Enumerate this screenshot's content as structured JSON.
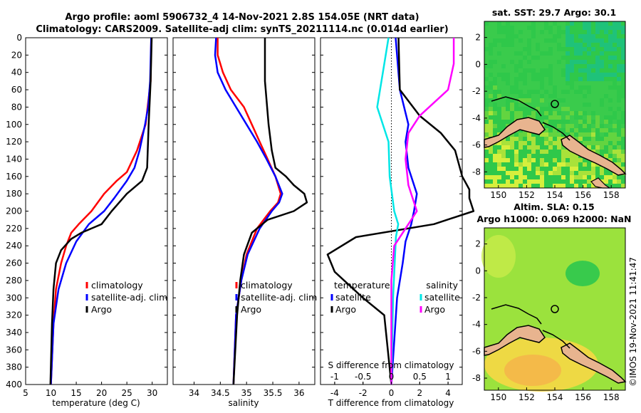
{
  "header": {
    "line1": "Argo profile: aoml 5906732_4 14-Nov-2021 2.8S 154.05E (NRT data)",
    "line2": "Climatology: CARS2009. Satellite-adj clim: synTS_20211114.nc (0.014d earlier)"
  },
  "depth_ticks": [
    "0",
    "20",
    "40",
    "60",
    "80",
    "100",
    "120",
    "140",
    "160",
    "180",
    "200",
    "220",
    "240",
    "260",
    "280",
    "300",
    "320",
    "340",
    "360",
    "380",
    "400"
  ],
  "colors": {
    "climatology": "#ff0000",
    "satellite": "#0000ff",
    "argo": "#000000",
    "sat_s": "#00e6e6",
    "argo_s": "#ff00ff"
  },
  "chart_data": [
    {
      "type": "line",
      "id": "temperature",
      "xlabel": "temperature (deg C)",
      "xlim": [
        5,
        33
      ],
      "ylim": [
        0,
        400
      ],
      "xticks": [
        "5",
        "10",
        "15",
        "20",
        "25",
        "30"
      ],
      "legend": [
        "climatology",
        "satellite-adj. clim",
        "Argo"
      ],
      "series": [
        {
          "name": "climatology",
          "depth": [
            0,
            50,
            100,
            130,
            155,
            165,
            180,
            200,
            215,
            225,
            240,
            260,
            290,
            330,
            400
          ],
          "values": [
            29.8,
            29.7,
            28.7,
            27.0,
            25.0,
            23.0,
            20.5,
            18.0,
            15.5,
            14.0,
            13.0,
            12.0,
            11.0,
            10.5,
            10.0
          ]
        },
        {
          "name": "satellite-adj. clim",
          "depth": [
            0,
            50,
            80,
            100,
            130,
            150,
            165,
            185,
            200,
            215,
            235,
            260,
            290,
            330,
            400
          ],
          "values": [
            29.8,
            29.6,
            29.2,
            28.6,
            27.5,
            26.5,
            25.0,
            22.5,
            20.5,
            17.5,
            15.0,
            13.0,
            11.5,
            10.5,
            10.0
          ]
        },
        {
          "name": "Argo",
          "depth": [
            0,
            50,
            100,
            150,
            165,
            180,
            200,
            215,
            225,
            232,
            245,
            260,
            290,
            330,
            400
          ],
          "values": [
            29.9,
            29.7,
            29.3,
            29.0,
            28.0,
            25.0,
            22.0,
            20.0,
            16.0,
            14.0,
            12.0,
            11.0,
            10.5,
            10.2,
            9.9
          ]
        }
      ]
    },
    {
      "type": "line",
      "id": "salinity",
      "xlabel": "salinity",
      "xlim": [
        33.6,
        36.3
      ],
      "ylim": [
        0,
        400
      ],
      "xticks": [
        "34",
        "34.5",
        "35",
        "35.5",
        "36"
      ],
      "legend": [
        "climatology",
        "satellite-adj. clim",
        "Argo"
      ],
      "series": [
        {
          "name": "climatology",
          "depth": [
            0,
            20,
            40,
            60,
            80,
            100,
            120,
            140,
            160,
            180,
            190,
            200,
            220,
            250,
            280,
            320,
            400
          ],
          "values": [
            34.45,
            34.45,
            34.55,
            34.7,
            34.95,
            35.1,
            35.25,
            35.4,
            35.55,
            35.65,
            35.6,
            35.45,
            35.2,
            35.0,
            34.9,
            34.8,
            34.75
          ]
        },
        {
          "name": "satellite-adj. clim",
          "depth": [
            0,
            20,
            40,
            60,
            80,
            100,
            120,
            140,
            160,
            180,
            190,
            200,
            220,
            250,
            280,
            320,
            400
          ],
          "values": [
            34.42,
            34.4,
            34.45,
            34.6,
            34.8,
            35.0,
            35.2,
            35.38,
            35.55,
            35.68,
            35.62,
            35.48,
            35.25,
            35.02,
            34.9,
            34.8,
            34.75
          ]
        },
        {
          "name": "Argo",
          "depth": [
            0,
            50,
            100,
            130,
            150,
            160,
            170,
            180,
            190,
            200,
            210,
            225,
            250,
            280,
            320,
            400
          ],
          "values": [
            35.35,
            35.35,
            35.42,
            35.48,
            35.55,
            35.75,
            35.9,
            36.1,
            36.15,
            35.9,
            35.4,
            35.1,
            34.95,
            34.88,
            34.82,
            34.75
          ]
        }
      ]
    },
    {
      "type": "line",
      "id": "difference",
      "xlabel": "T difference from climatology",
      "xlabel_top": "S difference from climatology",
      "xlim": [
        -5,
        5
      ],
      "ylim": [
        0,
        400
      ],
      "xticks": [
        "-4",
        "-2",
        "0",
        "2",
        "4"
      ],
      "xticks_top": [
        "-1",
        "-0.5",
        "0",
        "0.5",
        "1"
      ],
      "legend_temperature": {
        "title": "temperature",
        "items": [
          "satellite",
          "Argo"
        ]
      },
      "legend_salinity": {
        "title": "salinity",
        "items": [
          "satellite",
          "Argo"
        ]
      },
      "series": [
        {
          "name": "temperature satellite",
          "depth": [
            0,
            60,
            100,
            120,
            150,
            180,
            200,
            215,
            235,
            260,
            300,
            400
          ],
          "values": [
            0.3,
            0.6,
            1.2,
            1.0,
            1.2,
            1.8,
            1.6,
            1.4,
            1.0,
            0.8,
            0.4,
            0.0
          ]
        },
        {
          "name": "temperature Argo",
          "depth": [
            0,
            60,
            90,
            110,
            130,
            160,
            175,
            185,
            200,
            215,
            230,
            250,
            270,
            300,
            320,
            400
          ],
          "values": [
            0.5,
            0.6,
            2.0,
            3.5,
            4.5,
            5.0,
            5.5,
            5.5,
            5.8,
            3.0,
            -2.5,
            -4.5,
            -4.0,
            -2.0,
            -0.5,
            0.0
          ]
        },
        {
          "name": "salinity satellite",
          "depth": [
            0,
            40,
            80,
            120,
            160,
            200,
            215,
            230,
            300,
            400
          ],
          "values": [
            -0.05,
            -0.15,
            -0.25,
            -0.05,
            -0.03,
            0.05,
            0.12,
            0.08,
            0.03,
            0.0
          ]
        },
        {
          "name": "salinity Argo",
          "depth": [
            0,
            30,
            60,
            90,
            110,
            140,
            170,
            190,
            200,
            215,
            240,
            280,
            320,
            400
          ],
          "values": [
            1.1,
            1.1,
            1.0,
            0.5,
            0.3,
            0.25,
            0.3,
            0.4,
            0.45,
            0.3,
            0.05,
            0.0,
            0.0,
            0.0
          ]
        }
      ]
    }
  ],
  "maps": [
    {
      "title": "sat. SST: 29.7 Argo: 30.1",
      "xticks": [
        "150",
        "152",
        "154",
        "156",
        "158"
      ],
      "yticks": [
        "2",
        "0",
        "-2",
        "-4",
        "-6",
        "-8"
      ]
    },
    {
      "title_line1": "Altim. SLA: 0.15",
      "title_line2": "Argo h1000: 0.069 h2000: NaN",
      "xticks": [
        "150",
        "152",
        "154",
        "156",
        "158"
      ],
      "yticks": [
        "2",
        "0",
        "-2",
        "-4",
        "-6",
        "-8"
      ]
    }
  ],
  "watermark": "©IMOS 19-Nov-2021 11:41:47"
}
